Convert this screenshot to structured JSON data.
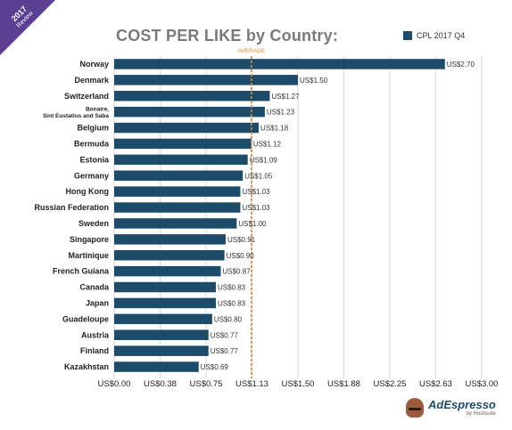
{
  "badge": {
    "year": "2017",
    "label": "Review"
  },
  "brand": {
    "name": "AdEspresso",
    "byline": "by Hootsuite"
  },
  "colors": {
    "bar": "#1d4c6b",
    "average": "#e08a3c",
    "grid": "#d6d6d6",
    "text": "#222222",
    "title": "#7a7a7a"
  },
  "chart_data": {
    "type": "bar",
    "orientation": "horizontal",
    "title": "COST PER LIKE by Country:",
    "legend": {
      "position": "top-right",
      "entries": [
        "CPL 2017 Q4"
      ]
    },
    "categories": [
      "Norway",
      "Denmark",
      "Switzerland",
      "Bonaire, Sint Eustatius and Saba",
      "Belgium",
      "Bermuda",
      "Estonia",
      "Germany",
      "Hong Kong",
      "Russian Federation",
      "Sweden",
      "Singapore",
      "Martinique",
      "French Guiana",
      "Canada",
      "Japan",
      "Guadeloupe",
      "Austria",
      "Finland",
      "Kazakhstan"
    ],
    "category_lines": [
      [
        "Norway"
      ],
      [
        "Denmark"
      ],
      [
        "Switzerland"
      ],
      [
        "Bonaire,",
        "Sint Eustatius and Saba"
      ],
      [
        "Belgium"
      ],
      [
        "Bermuda"
      ],
      [
        "Estonia"
      ],
      [
        "Germany"
      ],
      [
        "Hong Kong"
      ],
      [
        "Russian Federation"
      ],
      [
        "Sweden"
      ],
      [
        "Singapore"
      ],
      [
        "Martinique"
      ],
      [
        "French Guiana"
      ],
      [
        "Canada"
      ],
      [
        "Japan"
      ],
      [
        "Guadeloupe"
      ],
      [
        "Austria"
      ],
      [
        "Finland"
      ],
      [
        "Kazakhstan"
      ]
    ],
    "series": [
      {
        "name": "CPL 2017 Q4",
        "values": [
          2.7,
          1.5,
          1.27,
          1.23,
          1.18,
          1.12,
          1.09,
          1.05,
          1.03,
          1.03,
          1.0,
          0.91,
          0.9,
          0.87,
          0.83,
          0.83,
          0.8,
          0.77,
          0.77,
          0.69
        ],
        "labels": [
          "US$2.70",
          "US$1.50",
          "US$1.27",
          "US$1.23",
          "US$1.18",
          "US$1.12",
          "US$1.09",
          "US$1.05",
          "US$1.03",
          "US$1.03",
          "US$1.00",
          "US$0.91",
          "US$0.90",
          "US$0.87",
          "US$0.83",
          "US$0.83",
          "US$0.80",
          "US$0.77",
          "US$0.77",
          "US$0.69"
        ]
      }
    ],
    "xlim": [
      0,
      3.0
    ],
    "xticks": [
      0,
      0.375,
      0.75,
      1.125,
      1.5,
      1.875,
      2.25,
      2.625,
      3.0
    ],
    "xtick_labels": [
      "US$0.00",
      "US$0.38",
      "US$0.75",
      "US$1.13",
      "US$1.50",
      "US$1.88",
      "US$2.25",
      "US$2.63",
      "US$3.00"
    ],
    "average": {
      "label": "AVERAGE",
      "value": 1.12
    },
    "grid": true
  }
}
